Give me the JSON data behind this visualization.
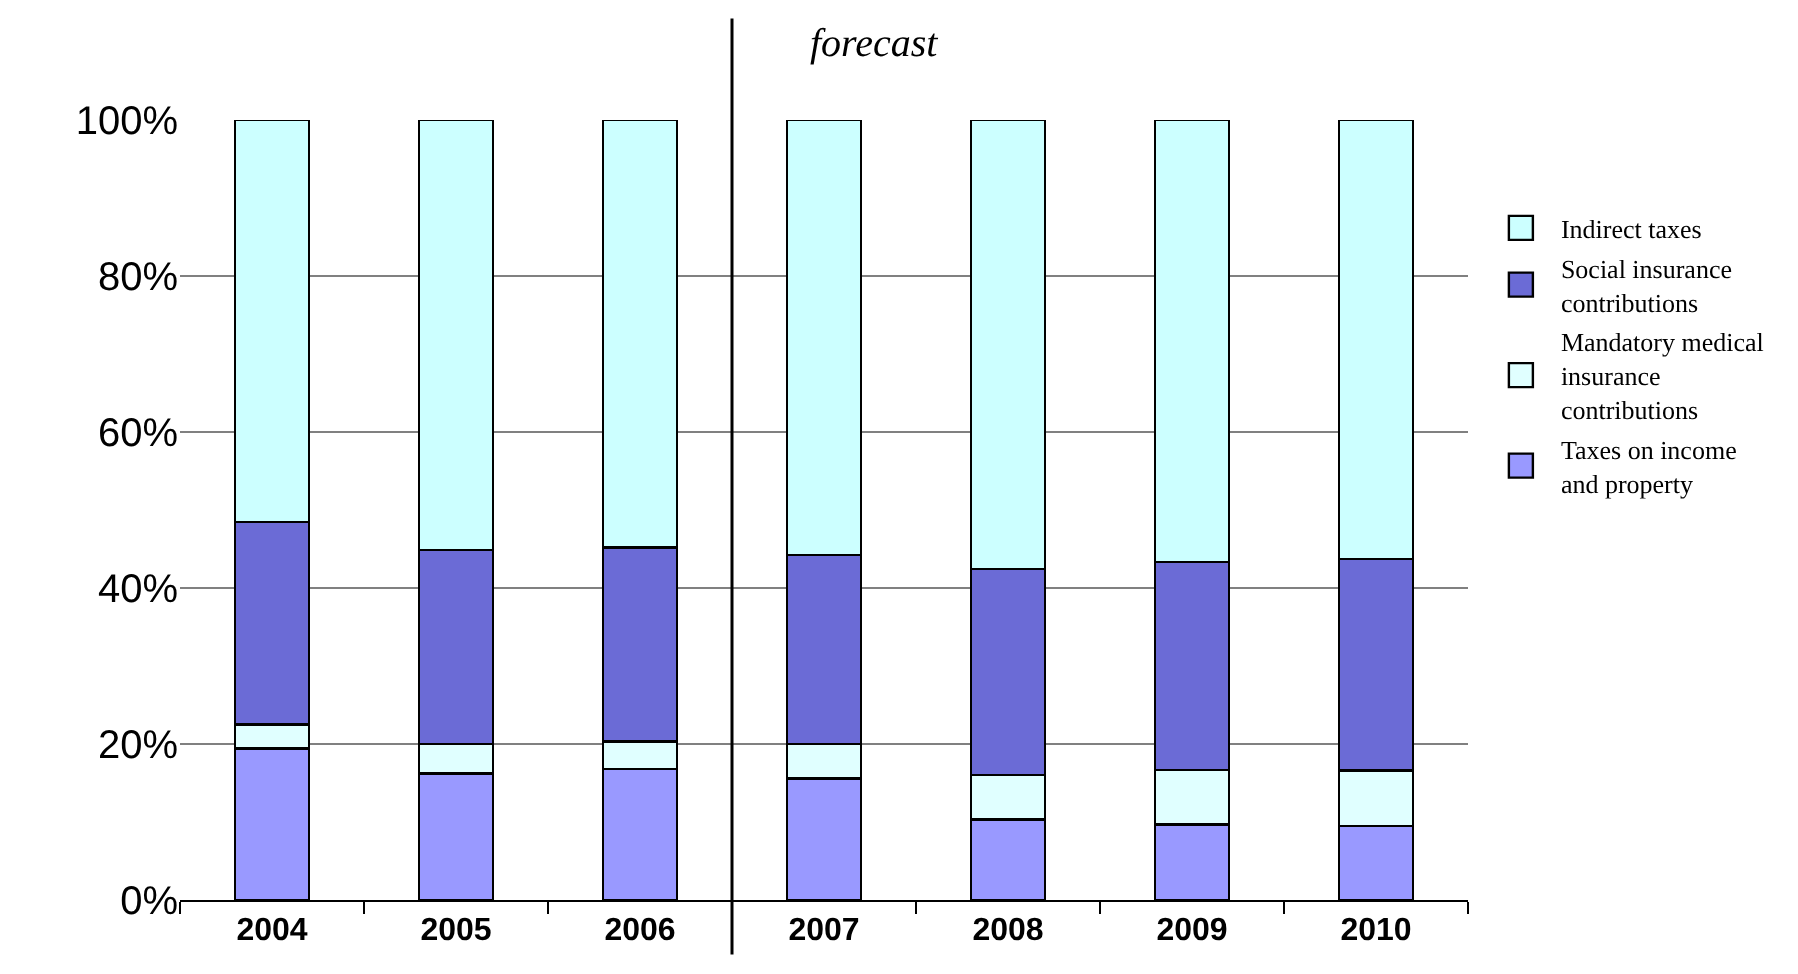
{
  "chart_data": {
    "type": "bar",
    "stacked": true,
    "x": [
      2004,
      2005,
      2006,
      2007,
      2008,
      2009,
      2010
    ],
    "xlim": [
      2003.5,
      2010.5
    ],
    "xticks": [
      2004,
      2005,
      2006,
      2007,
      2008,
      2009,
      2010
    ],
    "ylim": [
      0,
      100
    ],
    "yticks": [
      {
        "value": 0,
        "label": "0%"
      },
      {
        "value": 20,
        "label": "20%"
      },
      {
        "value": 40,
        "label": "40%"
      },
      {
        "value": 60,
        "label": "60%"
      },
      {
        "value": 80,
        "label": "80%"
      },
      {
        "value": 100,
        "label": "100%"
      }
    ],
    "series": [
      {
        "name": "Taxes on income and property",
        "color": "#9999ff",
        "values": [
          19.4,
          16.2,
          16.8,
          15.6,
          10.3,
          9.7,
          9.5
        ]
      },
      {
        "name": "Mandatory medical insurance contributions",
        "color": "#e0ffff",
        "values": [
          3.1,
          3.8,
          3.5,
          4.4,
          5.7,
          7.0,
          7.1
        ]
      },
      {
        "name": "Social insurance contributions",
        "color": "#6b6bd6",
        "values": [
          26.0,
          24.9,
          24.9,
          24.2,
          26.4,
          26.6,
          27.1
        ]
      },
      {
        "name": "Indirect taxes",
        "color": "#ccffff",
        "values": [
          51.5,
          55.1,
          54.8,
          55.8,
          57.6,
          56.7,
          56.3
        ]
      }
    ],
    "ref_lines": [
      {
        "axis": "x",
        "value": 2006.5,
        "label": "forecast"
      }
    ],
    "grid": "y",
    "legend": "right"
  }
}
